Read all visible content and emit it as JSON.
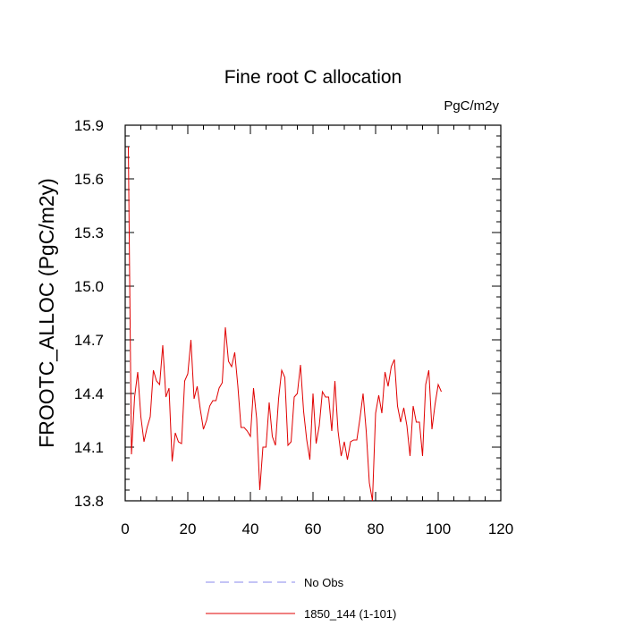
{
  "chart_data": {
    "type": "line",
    "title": "Fine root C allocation",
    "units_label": "PgC/m2y",
    "xlabel": "",
    "ylabel": "FROOTC_ALLOC  (PgC/m2y)",
    "xlim": [
      0,
      120
    ],
    "ylim": [
      13.8,
      15.9
    ],
    "xticks": [
      0,
      20,
      40,
      60,
      80,
      100,
      120
    ],
    "yticks": [
      13.8,
      14.1,
      14.4,
      14.7,
      15.0,
      15.3,
      15.6,
      15.9
    ],
    "ytick_labels": [
      "13.8",
      "14.1",
      "14.4",
      "14.7",
      "15.0",
      "15.3",
      "15.6",
      "15.9"
    ],
    "series": [
      {
        "name": "1850_144 (1-101)",
        "color": "#e00000",
        "style": "solid",
        "x": [
          1,
          2,
          3,
          4,
          5,
          6,
          7,
          8,
          9,
          10,
          11,
          12,
          13,
          14,
          15,
          16,
          17,
          18,
          19,
          20,
          21,
          22,
          23,
          24,
          25,
          26,
          27,
          28,
          29,
          30,
          31,
          32,
          33,
          34,
          35,
          36,
          37,
          38,
          39,
          40,
          41,
          42,
          43,
          44,
          45,
          46,
          47,
          48,
          49,
          50,
          51,
          52,
          53,
          54,
          55,
          56,
          57,
          58,
          59,
          60,
          61,
          62,
          63,
          64,
          65,
          66,
          67,
          68,
          69,
          70,
          71,
          72,
          73,
          74,
          75,
          76,
          77,
          78,
          79,
          80,
          81,
          82,
          83,
          84,
          85,
          86,
          87,
          88,
          89,
          90,
          91,
          92,
          93,
          94,
          95,
          96,
          97,
          98,
          99,
          100,
          101
        ],
        "values": [
          15.78,
          14.06,
          14.38,
          14.52,
          14.27,
          14.13,
          14.21,
          14.27,
          14.53,
          14.47,
          14.45,
          14.67,
          14.38,
          14.43,
          14.02,
          14.18,
          14.13,
          14.12,
          14.47,
          14.51,
          14.7,
          14.37,
          14.44,
          14.31,
          14.2,
          14.25,
          14.33,
          14.36,
          14.36,
          14.43,
          14.46,
          14.77,
          14.58,
          14.55,
          14.63,
          14.44,
          14.21,
          14.21,
          14.19,
          14.16,
          14.43,
          14.26,
          13.86,
          14.1,
          14.1,
          14.35,
          14.16,
          14.11,
          14.37,
          14.53,
          14.49,
          14.11,
          14.13,
          14.38,
          14.4,
          14.56,
          14.3,
          14.14,
          14.03,
          14.4,
          14.12,
          14.22,
          14.41,
          14.38,
          14.38,
          14.19,
          14.47,
          14.19,
          14.05,
          14.13,
          14.03,
          14.13,
          14.14,
          14.14,
          14.26,
          14.4,
          14.19,
          13.9,
          13.8,
          14.29,
          14.39,
          14.29,
          14.52,
          14.44,
          14.55,
          14.59,
          14.33,
          14.24,
          14.32,
          14.22,
          14.05,
          14.33,
          14.24,
          14.24,
          14.05,
          14.45,
          14.53,
          14.2,
          14.34,
          14.45,
          14.41
        ]
      }
    ],
    "legend": [
      {
        "label": "No Obs",
        "color": "#8888ee",
        "style": "dashed"
      },
      {
        "label": "1850_144 (1-101)",
        "color": "#e00000",
        "style": "solid"
      }
    ]
  }
}
